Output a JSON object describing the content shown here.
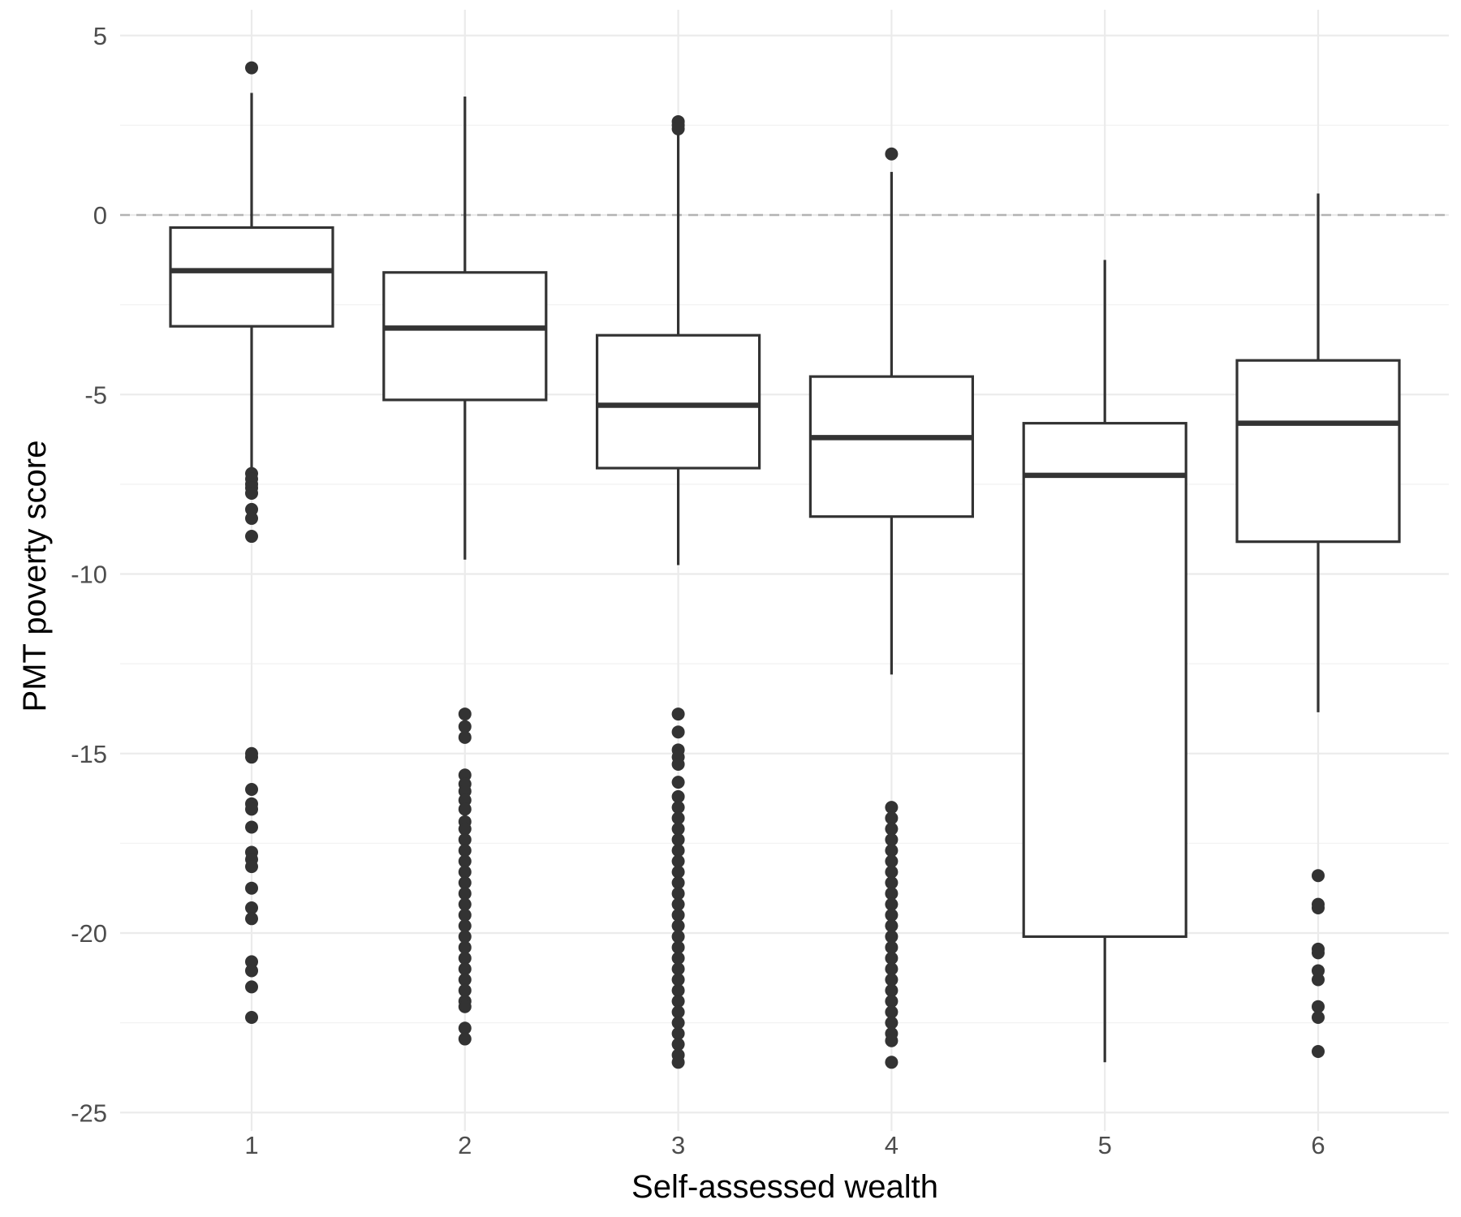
{
  "chart_data": {
    "type": "box",
    "xlabel": "Self-assessed wealth",
    "ylabel": "PMT poverty score",
    "ylim": [
      -25.6,
      5.3
    ],
    "yticks": [
      5,
      0,
      -5,
      -10,
      -15,
      -20,
      -25
    ],
    "ytick_labels": [
      "5",
      "0",
      "-5",
      "-10",
      "-15",
      "-20",
      "-25"
    ],
    "grid": true,
    "reference_line": {
      "y": 0,
      "style": "dashed",
      "color": "#b3b3b3"
    },
    "categories": [
      "1",
      "2",
      "3",
      "4",
      "5",
      "6"
    ],
    "boxes": [
      {
        "category": "1",
        "q1": -3.1,
        "median": -1.55,
        "q3": -0.35,
        "whisker_low": -7.2,
        "whisker_high": 3.4,
        "outliers": [
          4.1,
          -7.2,
          -7.35,
          -7.5,
          -7.6,
          -7.75,
          -8.2,
          -8.45,
          -8.95,
          -15.0,
          -15.1,
          -16.0,
          -16.4,
          -16.55,
          -17.05,
          -17.75,
          -17.95,
          -18.15,
          -18.75,
          -19.3,
          -19.6,
          -20.8,
          -21.05,
          -21.5,
          -22.35
        ]
      },
      {
        "category": "2",
        "q1": -5.15,
        "median": -3.15,
        "q3": -1.6,
        "whisker_low": -9.6,
        "whisker_high": 3.3,
        "outliers": [
          -13.9,
          -14.25,
          -14.55,
          -15.6,
          -15.85,
          -16.05,
          -16.3,
          -16.55,
          -16.9,
          -17.1,
          -17.4,
          -17.7,
          -18.0,
          -18.3,
          -18.6,
          -18.9,
          -19.2,
          -19.5,
          -19.8,
          -20.1,
          -20.4,
          -20.7,
          -21.0,
          -21.3,
          -21.6,
          -21.9,
          -22.05,
          -22.65,
          -22.95
        ]
      },
      {
        "category": "3",
        "q1": -7.05,
        "median": -5.3,
        "q3": -3.35,
        "whisker_low": -9.75,
        "whisker_high": 2.3,
        "outliers": [
          2.6,
          2.5,
          2.4,
          -13.9,
          -14.4,
          -14.9,
          -15.1,
          -15.3,
          -15.8,
          -16.2,
          -16.5,
          -16.8,
          -17.1,
          -17.4,
          -17.7,
          -18.0,
          -18.3,
          -18.6,
          -18.9,
          -19.2,
          -19.5,
          -19.8,
          -20.1,
          -20.4,
          -20.7,
          -21.0,
          -21.3,
          -21.6,
          -21.9,
          -22.2,
          -22.5,
          -22.8,
          -23.1,
          -23.4,
          -23.6
        ]
      },
      {
        "category": "4",
        "q1": -8.4,
        "median": -6.2,
        "q3": -4.5,
        "whisker_low": -12.8,
        "whisker_high": 1.2,
        "outliers": [
          1.7,
          -16.5,
          -16.8,
          -17.1,
          -17.4,
          -17.7,
          -18.0,
          -18.3,
          -18.6,
          -18.9,
          -19.2,
          -19.5,
          -19.8,
          -20.1,
          -20.4,
          -20.7,
          -21.0,
          -21.3,
          -21.6,
          -21.9,
          -22.2,
          -22.5,
          -22.8,
          -23.0,
          -23.6
        ]
      },
      {
        "category": "5",
        "q1": -20.1,
        "median": -7.25,
        "q3": -5.8,
        "whisker_low": -23.6,
        "whisker_high": -1.25,
        "outliers": []
      },
      {
        "category": "6",
        "q1": -9.1,
        "median": -5.8,
        "q3": -4.05,
        "whisker_low": -13.85,
        "whisker_high": 0.6,
        "outliers": [
          -18.4,
          -19.2,
          -19.3,
          -20.45,
          -20.55,
          -21.05,
          -21.3,
          -22.05,
          -22.35,
          -23.3
        ]
      }
    ]
  }
}
